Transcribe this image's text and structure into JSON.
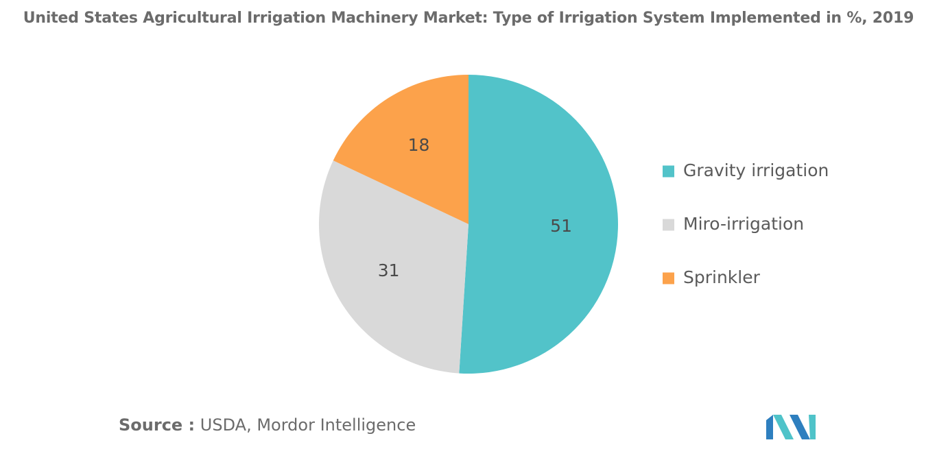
{
  "title": "United States Agricultural Irrigation Machinery Market: Type of Irrigation System Implemented in %, 2019",
  "source": {
    "key": "Source :",
    "value": "USDA, Mordor Intelligence"
  },
  "logo": {
    "icon": "mordor-intelligence-logo-icon",
    "colors": [
      "#2e7fbf",
      "#4fc3c9"
    ]
  },
  "chart_data": {
    "type": "pie",
    "title": "United States Agricultural Irrigation Machinery Market: Type of Irrigation System Implemented in %, 2019",
    "legend_position": "right",
    "start_angle_deg": 0,
    "direction": "clockwise",
    "slices": [
      {
        "label": "Gravity irrigation",
        "value": 51,
        "display": "51",
        "color": "#52c3c9"
      },
      {
        "label": "Miro-irrigation",
        "value": 31,
        "display": "31",
        "color": "#d9d9d9"
      },
      {
        "label": "Sprinkler",
        "value": 18,
        "display": "18",
        "color": "#fca24b"
      }
    ]
  }
}
